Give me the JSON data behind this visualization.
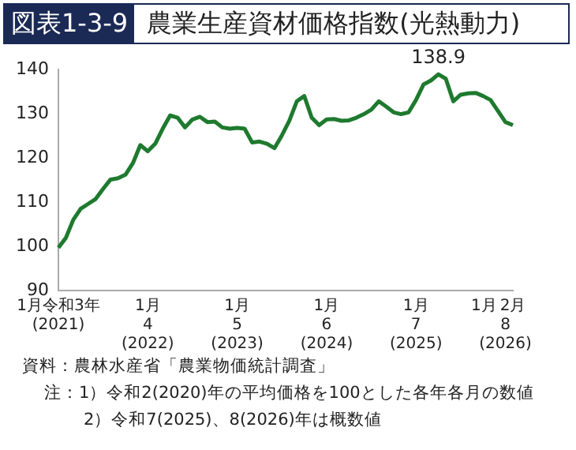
{
  "chart_data": {
    "type": "line",
    "title": "図表1-3-9",
    "subtitle": "農業生産資材価格指数(光熱動力)",
    "categories": [
      "1月令和3年\n(2021)",
      null,
      null,
      null,
      null,
      null,
      null,
      null,
      null,
      null,
      null,
      null,
      "1月\n4\n(2022)",
      null,
      null,
      null,
      null,
      null,
      null,
      null,
      null,
      null,
      null,
      null,
      "1月\n5\n(2023)",
      null,
      null,
      null,
      null,
      null,
      null,
      null,
      null,
      null,
      null,
      null,
      "1月\n6\n(2024)",
      null,
      null,
      null,
      null,
      null,
      null,
      null,
      null,
      null,
      null,
      null,
      "1月\n7\n(2025)",
      null,
      null,
      null,
      null,
      null,
      null,
      null,
      null,
      null,
      null,
      null,
      "1月\n8\n(2026)",
      "2月"
    ],
    "series": [
      {
        "color": "#1e7a2e",
        "values": [
          99.7,
          101.9,
          106,
          108.5,
          109.6,
          110.7,
          113,
          115.1,
          115.4,
          116.2,
          118.8,
          122.9,
          121.5,
          123.2,
          126.6,
          129.6,
          129.1,
          126.9,
          128.7,
          129.3,
          128.1,
          128.2,
          126.9,
          126.6,
          126.8,
          126.6,
          123.5,
          123.7,
          123.2,
          122.2,
          125.1,
          128.4,
          132.8,
          134,
          129.1,
          127.4,
          128.7,
          128.8,
          128.4,
          128.5,
          129.1,
          129.9,
          130.9,
          132.8,
          131.6,
          130.3,
          129.9,
          130.3,
          133.1,
          136.6,
          137.5,
          138.9,
          137.9,
          132.8,
          134.3,
          134.6,
          134.7,
          134,
          133.1,
          130.6,
          128.1,
          127.4
        ]
      }
    ],
    "ylim": [
      90,
      140
    ],
    "yticks": [
      90,
      100,
      110,
      120,
      130,
      140
    ],
    "grid": false,
    "legend": false,
    "marker": "none",
    "line_style": "solid",
    "annotations": [
      {
        "text": "138.9",
        "y": 138.9
      },
      "資料：農林水産省「農業物価統計調査」",
      "注：1）令和2(2020)年の平均価格を100とした各年各月の数値",
      "2）令和7(2025)、8(2026)年は概数値"
    ]
  }
}
